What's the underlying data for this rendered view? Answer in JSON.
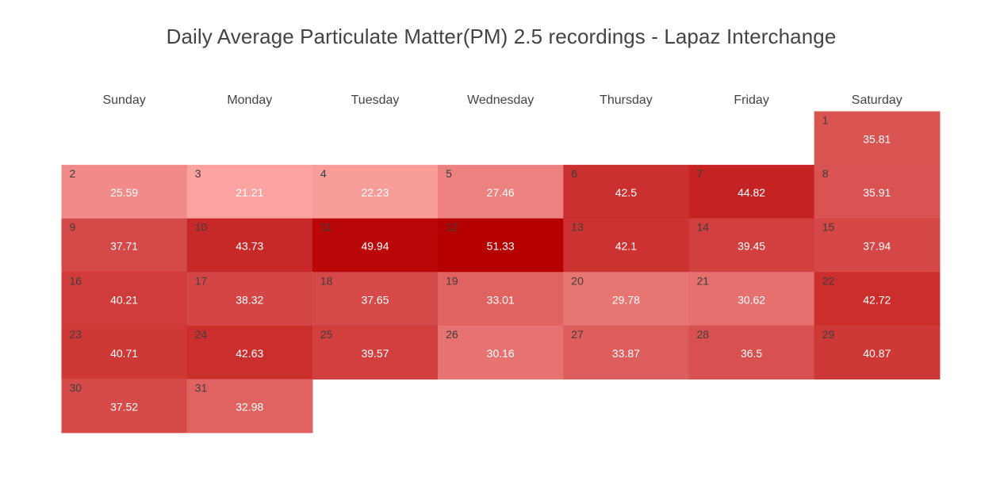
{
  "chart_data": {
    "type": "heatmap",
    "title": "Daily Average Particulate Matter(PM) 2.5 recordings - Lapaz Interchange",
    "weekdays": [
      "Sunday",
      "Monday",
      "Tuesday",
      "Wednesday",
      "Thursday",
      "Friday",
      "Saturday"
    ],
    "first_weekday_index": 6,
    "days": [
      {
        "day": "1",
        "value": "35.81"
      },
      {
        "day": "2",
        "value": "25.59"
      },
      {
        "day": "3",
        "value": "21.21"
      },
      {
        "day": "4",
        "value": "22.23"
      },
      {
        "day": "5",
        "value": "27.46"
      },
      {
        "day": "6",
        "value": "42.5"
      },
      {
        "day": "7",
        "value": "44.82"
      },
      {
        "day": "8",
        "value": "35.91"
      },
      {
        "day": "9",
        "value": "37.71"
      },
      {
        "day": "10",
        "value": "43.73"
      },
      {
        "day": "11",
        "value": "49.94"
      },
      {
        "day": "12",
        "value": "51.33"
      },
      {
        "day": "13",
        "value": "42.1"
      },
      {
        "day": "14",
        "value": "39.45"
      },
      {
        "day": "15",
        "value": "37.94"
      },
      {
        "day": "16",
        "value": "40.21"
      },
      {
        "day": "17",
        "value": "38.32"
      },
      {
        "day": "18",
        "value": "37.65"
      },
      {
        "day": "19",
        "value": "33.01"
      },
      {
        "day": "20",
        "value": "29.78"
      },
      {
        "day": "21",
        "value": "30.62"
      },
      {
        "day": "22",
        "value": "42.72"
      },
      {
        "day": "23",
        "value": "40.71"
      },
      {
        "day": "24",
        "value": "42.63"
      },
      {
        "day": "25",
        "value": "39.57"
      },
      {
        "day": "26",
        "value": "30.16"
      },
      {
        "day": "27",
        "value": "33.87"
      },
      {
        "day": "28",
        "value": "36.5"
      },
      {
        "day": "29",
        "value": "40.87"
      },
      {
        "day": "30",
        "value": "37.52"
      },
      {
        "day": "31",
        "value": "32.98"
      }
    ],
    "color_scale": {
      "low_color": "#fba3a0",
      "high_color": "#b60000"
    },
    "grid": false,
    "legend": "none"
  }
}
